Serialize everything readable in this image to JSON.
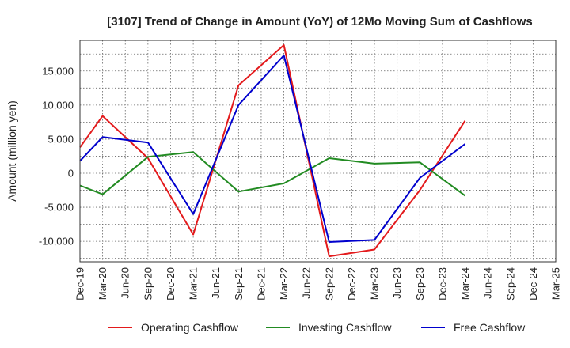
{
  "chart_data": {
    "type": "line",
    "title": "[3107]  Trend of Change in Amount (YoY) of 12Mo Moving Sum of Cashflows",
    "xlabel": "",
    "ylabel": "Amount (million yen)",
    "ylim": [
      -13000,
      19500
    ],
    "yticks": [
      -10000,
      -5000,
      0,
      5000,
      10000,
      15000
    ],
    "ytick_labels": [
      "-10,000",
      "-5,000",
      "0",
      "5,000",
      "10,000",
      "15,000"
    ],
    "categories": [
      "Dec-19",
      "Mar-20",
      "Jun-20",
      "Sep-20",
      "Dec-20",
      "Mar-21",
      "Jun-21",
      "Sep-21",
      "Dec-21",
      "Mar-22",
      "Jun-22",
      "Sep-22",
      "Dec-22",
      "Mar-23",
      "Jun-23",
      "Sep-23",
      "Dec-23",
      "Mar-24",
      "Jun-24",
      "Sep-24",
      "Dec-24",
      "Mar-25"
    ],
    "grid": true,
    "legend_position": "bottom",
    "series": [
      {
        "name": "Operating Cashflow",
        "color": "#e31a1c",
        "points": [
          {
            "x": "Dec-19",
            "y": 3800
          },
          {
            "x": "Mar-20",
            "y": 8400
          },
          {
            "x": "Sep-20",
            "y": 2200
          },
          {
            "x": "Mar-21",
            "y": -9000
          },
          {
            "x": "Sep-21",
            "y": 12900
          },
          {
            "x": "Mar-22",
            "y": 18800
          },
          {
            "x": "Sep-22",
            "y": -12200
          },
          {
            "x": "Mar-23",
            "y": -11200
          },
          {
            "x": "Sep-23",
            "y": -2500
          },
          {
            "x": "Mar-24",
            "y": 7700
          }
        ]
      },
      {
        "name": "Investing Cashflow",
        "color": "#228b22",
        "points": [
          {
            "x": "Dec-19",
            "y": -1800
          },
          {
            "x": "Mar-20",
            "y": -3100
          },
          {
            "x": "Sep-20",
            "y": 2400
          },
          {
            "x": "Mar-21",
            "y": 3100
          },
          {
            "x": "Sep-21",
            "y": -2700
          },
          {
            "x": "Mar-22",
            "y": -1500
          },
          {
            "x": "Sep-22",
            "y": 2200
          },
          {
            "x": "Mar-23",
            "y": 1400
          },
          {
            "x": "Sep-23",
            "y": 1600
          },
          {
            "x": "Mar-24",
            "y": -3300
          }
        ]
      },
      {
        "name": "Free Cashflow",
        "color": "#0000cd",
        "points": [
          {
            "x": "Dec-19",
            "y": 1800
          },
          {
            "x": "Mar-20",
            "y": 5300
          },
          {
            "x": "Sep-20",
            "y": 4500
          },
          {
            "x": "Mar-21",
            "y": -6000
          },
          {
            "x": "Sep-21",
            "y": 10000
          },
          {
            "x": "Mar-22",
            "y": 17300
          },
          {
            "x": "Sep-22",
            "y": -10100
          },
          {
            "x": "Mar-23",
            "y": -9800
          },
          {
            "x": "Sep-23",
            "y": -700
          },
          {
            "x": "Mar-24",
            "y": 4300
          }
        ]
      }
    ]
  }
}
